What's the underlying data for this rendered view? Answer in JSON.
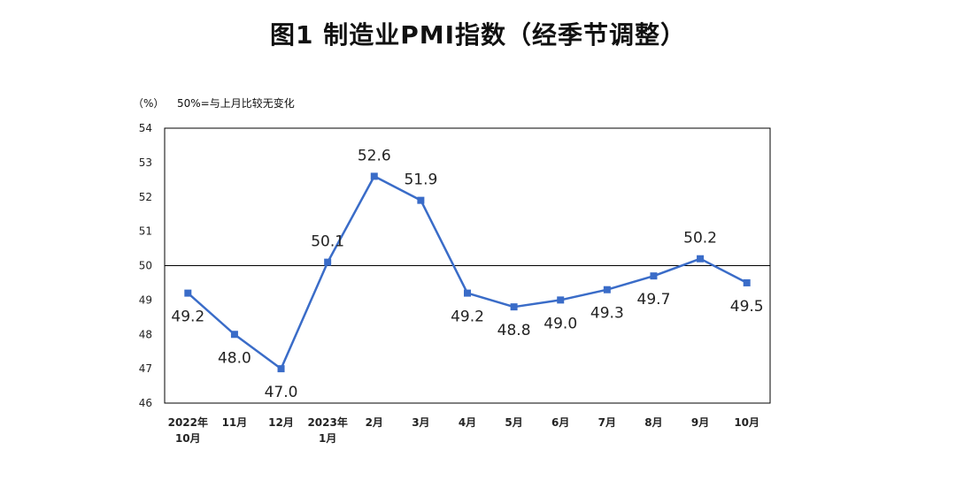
{
  "chart_data": {
    "type": "line",
    "title": "图1 制造业PMI指数（经季节调整）",
    "unit_label": "（%）",
    "note": "50%=与上月比较无变化",
    "categories": [
      [
        "2022年",
        "10月"
      ],
      [
        "11月"
      ],
      [
        "12月"
      ],
      [
        "2023年",
        "1月"
      ],
      [
        "2月"
      ],
      [
        "3月"
      ],
      [
        "4月"
      ],
      [
        "5月"
      ],
      [
        "6月"
      ],
      [
        "7月"
      ],
      [
        "8月"
      ],
      [
        "9月"
      ],
      [
        "10月"
      ]
    ],
    "series": [
      {
        "values": [
          49.2,
          48.0,
          47.0,
          50.1,
          52.6,
          51.9,
          49.2,
          48.8,
          49.0,
          49.3,
          49.7,
          50.2,
          49.5
        ]
      }
    ],
    "data_labels": [
      "49.2",
      "48.0",
      "47.0",
      "50.1",
      "52.6",
      "51.9",
      "49.2",
      "48.8",
      "49.0",
      "49.3",
      "49.7",
      "50.2",
      "49.5"
    ],
    "yticks": [
      "46",
      "47",
      "48",
      "49",
      "50",
      "51",
      "52",
      "53",
      "54"
    ],
    "ylim": [
      46,
      54
    ],
    "reference_line": 50,
    "line_color": "#3a6cc8",
    "grid": false
  }
}
